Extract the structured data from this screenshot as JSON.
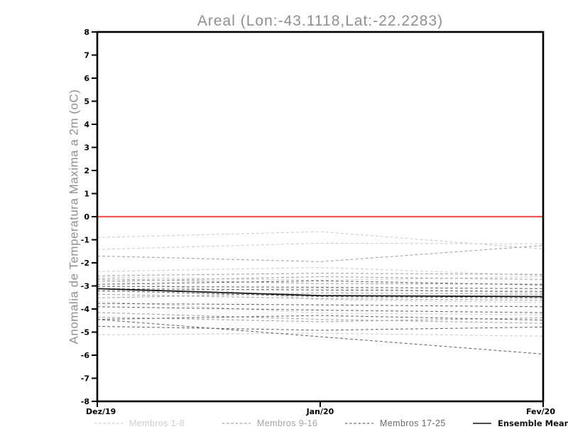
{
  "chart_data": {
    "type": "line",
    "title": "Areal (Lon:-43.1118,Lat:-22.2283)",
    "ylabel": "Anomalia de Temperatura Maxima a 2m (oC)",
    "xlabel": "",
    "x_ticklabels": [
      "Dez/19",
      "Jan/20",
      "Fev/20"
    ],
    "ylim": [
      -8,
      8
    ],
    "ytick_step": 1,
    "grid": false,
    "legend_position": "bottom",
    "background": "#ffffff",
    "axis_color": "#000000",
    "zero_line": {
      "value": 0,
      "color": "#f85450",
      "width": 2.2
    },
    "groups": [
      {
        "name": "Membros 1-8",
        "color": "#cdcdcd",
        "style": "dashed"
      },
      {
        "name": "Membros 9-16",
        "color": "#a4a4a4",
        "style": "dashed"
      },
      {
        "name": "Membros 17-25",
        "color": "#6b6b6b",
        "style": "dashed"
      },
      {
        "name": "Ensemble Mean",
        "color": "#141414",
        "style": "solid"
      }
    ],
    "series": [
      {
        "name": "Membro 1",
        "group": 0,
        "values": [
          -0.9,
          -0.65,
          -1.4
        ]
      },
      {
        "name": "Membro 2",
        "group": 0,
        "values": [
          -1.42,
          -1.15,
          -1.18
        ]
      },
      {
        "name": "Membro 3",
        "group": 0,
        "values": [
          -2.38,
          -2.2,
          -2.55
        ]
      },
      {
        "name": "Membro 4",
        "group": 0,
        "values": [
          -2.62,
          -2.75,
          -2.6
        ]
      },
      {
        "name": "Membro 5",
        "group": 0,
        "values": [
          -2.72,
          -3.6,
          -3.72
        ]
      },
      {
        "name": "Membro 6",
        "group": 0,
        "values": [
          -3.25,
          -3.1,
          -3.3
        ]
      },
      {
        "name": "Membro 7",
        "group": 0,
        "values": [
          -3.67,
          -4.18,
          -4.25
        ]
      },
      {
        "name": "Membro 8",
        "group": 0,
        "values": [
          -5.12,
          -5.05,
          -5.18
        ]
      },
      {
        "name": "Membro 9",
        "group": 1,
        "values": [
          -1.7,
          -1.95,
          -1.25
        ]
      },
      {
        "name": "Membro 10",
        "group": 1,
        "values": [
          -2.56,
          -2.45,
          -2.5
        ]
      },
      {
        "name": "Membro 11",
        "group": 1,
        "values": [
          -2.69,
          -2.9,
          -2.92
        ]
      },
      {
        "name": "Membro 12",
        "group": 1,
        "values": [
          -2.81,
          -2.6,
          -2.72
        ]
      },
      {
        "name": "Membro 13",
        "group": 1,
        "values": [
          -3.36,
          -3.55,
          -3.62
        ]
      },
      {
        "name": "Membro 14",
        "group": 1,
        "values": [
          -3.52,
          -3.3,
          -3.36
        ]
      },
      {
        "name": "Membro 15",
        "group": 1,
        "values": [
          -4.15,
          -4.45,
          -4.62
        ]
      },
      {
        "name": "Membro 16",
        "group": 1,
        "values": [
          -4.35,
          -4.55,
          -4.38
        ]
      },
      {
        "name": "Membro 17",
        "group": 2,
        "values": [
          -2.93,
          -2.78,
          -2.96
        ]
      },
      {
        "name": "Membro 18",
        "group": 2,
        "values": [
          -3.02,
          -3.06,
          -3.12
        ]
      },
      {
        "name": "Membro 19",
        "group": 2,
        "values": [
          -3.12,
          -3.18,
          -3.24
        ]
      },
      {
        "name": "Membro 20",
        "group": 2,
        "values": [
          -3.2,
          -3.46,
          -3.52
        ]
      },
      {
        "name": "Membro 21",
        "group": 2,
        "values": [
          -3.76,
          -3.82,
          -3.9
        ]
      },
      {
        "name": "Membro 22",
        "group": 2,
        "values": [
          -3.9,
          -4.05,
          -4.16
        ]
      },
      {
        "name": "Membro 23",
        "group": 2,
        "values": [
          -4.45,
          -4.28,
          -4.48
        ]
      },
      {
        "name": "Membro 24",
        "group": 2,
        "values": [
          -4.75,
          -4.92,
          -4.78
        ]
      },
      {
        "name": "Membro 25",
        "group": 2,
        "values": [
          -4.45,
          -5.2,
          -5.95
        ]
      },
      {
        "name": "Ensemble Mean",
        "group": 3,
        "values": [
          -3.12,
          -3.42,
          -3.46
        ]
      }
    ]
  }
}
